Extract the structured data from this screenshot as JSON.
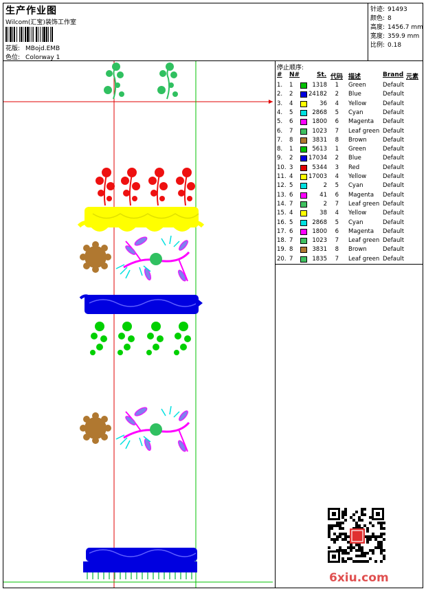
{
  "header": {
    "title": "生产作业图",
    "company": "Wilcom(汇宝)装饰工作室",
    "design_label": "花版:",
    "design_value": "MBojd.EMB",
    "colorway_label": "色位:",
    "colorway_value": "Colorway 1"
  },
  "stats": [
    {
      "label": "针迹:",
      "value": "91493"
    },
    {
      "label": "颜色:",
      "value": "8"
    },
    {
      "label": "高度:",
      "value": "1456.7 mm"
    },
    {
      "label": "宽度:",
      "value": "359.9 mm"
    },
    {
      "label": "比例:",
      "value": "0.18"
    }
  ],
  "stop_sequence": {
    "title": "停止顺序:",
    "headers": {
      "index": "#",
      "needle": "N#",
      "stitches": "St.",
      "code": "代码",
      "desc": "描述",
      "brand": "Brand",
      "element": "元素"
    },
    "rows": [
      {
        "index": "1.",
        "needle": "1",
        "color": "#00c000",
        "stitches": "1318",
        "code": "1",
        "desc": "Green",
        "brand": "Default"
      },
      {
        "index": "2.",
        "needle": "2",
        "color": "#0000e0",
        "stitches": "24182",
        "code": "2",
        "desc": "Blue",
        "brand": "Default"
      },
      {
        "index": "3.",
        "needle": "4",
        "color": "#ffff00",
        "stitches": "36",
        "code": "4",
        "desc": "Yellow",
        "brand": "Default"
      },
      {
        "index": "4.",
        "needle": "5",
        "color": "#00e0e0",
        "stitches": "2868",
        "code": "5",
        "desc": "Cyan",
        "brand": "Default"
      },
      {
        "index": "5.",
        "needle": "6",
        "color": "#ff00ff",
        "stitches": "1800",
        "code": "6",
        "desc": "Magenta",
        "brand": "Default"
      },
      {
        "index": "6.",
        "needle": "7",
        "color": "#40c060",
        "stitches": "1023",
        "code": "7",
        "desc": "Leaf green",
        "brand": "Default"
      },
      {
        "index": "7.",
        "needle": "8",
        "color": "#b07830",
        "stitches": "3831",
        "code": "8",
        "desc": "Brown",
        "brand": "Default"
      },
      {
        "index": "8.",
        "needle": "1",
        "color": "#00c000",
        "stitches": "5613",
        "code": "1",
        "desc": "Green",
        "brand": "Default"
      },
      {
        "index": "9.",
        "needle": "2",
        "color": "#0000e0",
        "stitches": "17034",
        "code": "2",
        "desc": "Blue",
        "brand": "Default"
      },
      {
        "index": "10.",
        "needle": "3",
        "color": "#e00000",
        "stitches": "5344",
        "code": "3",
        "desc": "Red",
        "brand": "Default"
      },
      {
        "index": "11.",
        "needle": "4",
        "color": "#ffff00",
        "stitches": "17003",
        "code": "4",
        "desc": "Yellow",
        "brand": "Default"
      },
      {
        "index": "12.",
        "needle": "5",
        "color": "#00e0e0",
        "stitches": "2",
        "code": "5",
        "desc": "Cyan",
        "brand": "Default"
      },
      {
        "index": "13.",
        "needle": "6",
        "color": "#ff00ff",
        "stitches": "41",
        "code": "6",
        "desc": "Magenta",
        "brand": "Default"
      },
      {
        "index": "14.",
        "needle": "7",
        "color": "#40c060",
        "stitches": "2",
        "code": "7",
        "desc": "Leaf green",
        "brand": "Default"
      },
      {
        "index": "15.",
        "needle": "4",
        "color": "#ffff00",
        "stitches": "38",
        "code": "4",
        "desc": "Yellow",
        "brand": "Default"
      },
      {
        "index": "16.",
        "needle": "5",
        "color": "#00e0e0",
        "stitches": "2868",
        "code": "5",
        "desc": "Cyan",
        "brand": "Default"
      },
      {
        "index": "17.",
        "needle": "6",
        "color": "#ff00ff",
        "stitches": "1800",
        "code": "6",
        "desc": "Magenta",
        "brand": "Default"
      },
      {
        "index": "18.",
        "needle": "7",
        "color": "#40c060",
        "stitches": "1023",
        "code": "7",
        "desc": "Leaf green",
        "brand": "Default"
      },
      {
        "index": "19.",
        "needle": "8",
        "color": "#b07830",
        "stitches": "3831",
        "code": "8",
        "desc": "Brown",
        "brand": "Default"
      },
      {
        "index": "20.",
        "needle": "7",
        "color": "#40c060",
        "stitches": "1835",
        "code": "7",
        "desc": "Leaf green",
        "brand": "Default"
      }
    ]
  },
  "watermark": {
    "site": "6xiu.com"
  },
  "colors": {
    "guide_red": "#e00000",
    "guide_green": "#00c000"
  }
}
